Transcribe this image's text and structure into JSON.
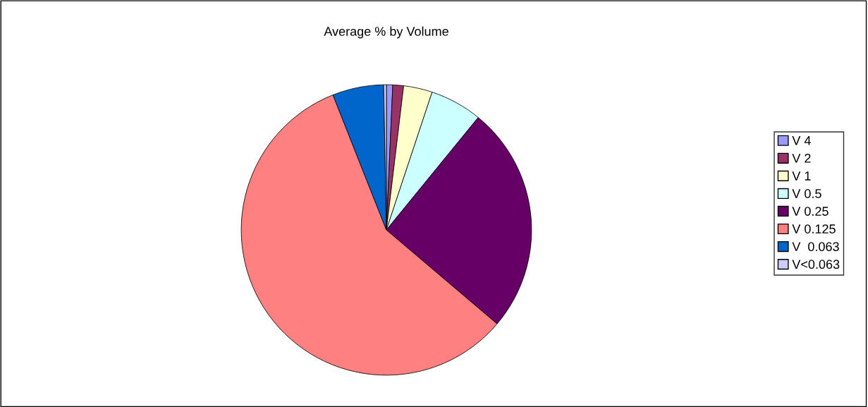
{
  "chart_data": {
    "type": "pie",
    "title": "Average % by Volume",
    "categories": [
      "V 4",
      "V 2",
      "V 1",
      "V 0.5",
      "V 0.25",
      "V 0.125",
      "V  0.063",
      "V<0.063"
    ],
    "values": [
      0.7,
      1.2,
      3.2,
      5.8,
      25.3,
      57.8,
      5.7,
      0.3
    ],
    "colors": [
      "#9999ff",
      "#993366",
      "#ffffcc",
      "#ccffff",
      "#660066",
      "#ff8080",
      "#0066cc",
      "#ccccff"
    ],
    "legend": "right"
  }
}
